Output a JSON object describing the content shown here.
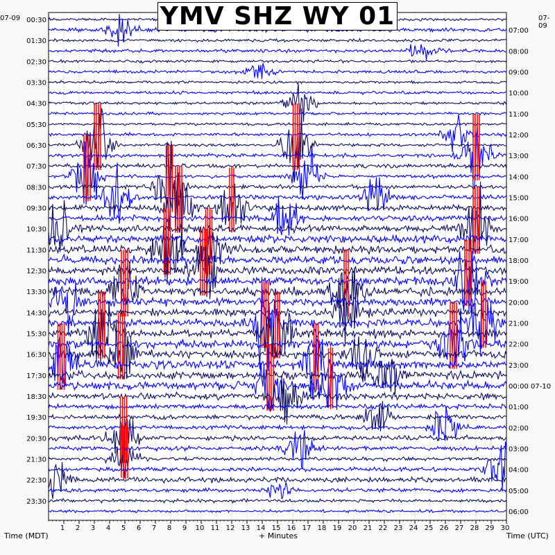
{
  "title": "YMV SHZ WY 01",
  "date_left": "07-09",
  "date_right_top": "07-09",
  "date_right_next": "07-10",
  "x_caption_left": "Time (MDT)",
  "x_caption_center": "+ Minutes",
  "x_caption_right": "Time (UTC)",
  "colors": {
    "background": "#f8f8f8",
    "plot_background": "#ffffff",
    "trace_dark": "#0a0a60",
    "trace_blue": "#0000ff",
    "clipped": "#ff0000",
    "grid": "#000000"
  },
  "chart_data": {
    "type": "line",
    "title": "YMV SHZ WY 01",
    "xlabel": "+ Minutes",
    "ylabel_left": "Time (MDT)",
    "ylabel_right": "Time (UTC)",
    "xlim": [
      0,
      30
    ],
    "x_ticks": [
      1,
      2,
      3,
      4,
      5,
      6,
      7,
      8,
      9,
      10,
      11,
      12,
      13,
      14,
      15,
      16,
      17,
      18,
      19,
      20,
      21,
      22,
      23,
      24,
      25,
      26,
      27,
      28,
      29,
      30
    ],
    "left_tick_labels": [
      "00:30",
      "01:30",
      "02:30",
      "03:30",
      "04:30",
      "05:30",
      "06:30",
      "07:30",
      "08:30",
      "09:30",
      "10:30",
      "11:30",
      "12:30",
      "13:30",
      "14:30",
      "15:30",
      "16:30",
      "17:30",
      "18:30",
      "19:30",
      "20:30",
      "21:30",
      "22:30",
      "23:30"
    ],
    "right_tick_labels": [
      "07:00",
      "08:00",
      "09:00",
      "10:00",
      "11:00",
      "12:00",
      "13:00",
      "14:00",
      "15:00",
      "16:00",
      "17:00",
      "18:00",
      "19:00",
      "20:00",
      "21:00",
      "22:00",
      "23:00",
      "00:00",
      "01:00",
      "02:00",
      "03:00",
      "04:00",
      "05:00",
      "06:00"
    ],
    "rows": 48,
    "row_minutes": 30,
    "series_colors": [
      "#0a0a60",
      "#0000ff"
    ],
    "activity_level": [
      0.1,
      0.35,
      0.18,
      0.22,
      0.15,
      0.18,
      0.12,
      0.16,
      0.14,
      0.15,
      0.12,
      0.2,
      0.15,
      0.3,
      0.35,
      0.25,
      0.3,
      0.4,
      0.55,
      0.6,
      0.75,
      0.85,
      0.9,
      0.95,
      0.9,
      1.0,
      0.95,
      0.9,
      0.85,
      0.9,
      1.0,
      0.95,
      0.9,
      1.0,
      1.0,
      0.95,
      0.7,
      0.45,
      0.4,
      0.35,
      0.45,
      0.4,
      0.3,
      0.35,
      0.5,
      0.3,
      0.25,
      0.15
    ],
    "events": [
      {
        "row": 1,
        "minute": 4.8,
        "amp": 1.0,
        "clipped": false
      },
      {
        "row": 3,
        "minute": 24.5,
        "amp": 0.7,
        "clipped": false
      },
      {
        "row": 5,
        "minute": 13.8,
        "amp": 0.6,
        "clipped": false
      },
      {
        "row": 8,
        "minute": 16.5,
        "amp": 1.2,
        "clipped": false
      },
      {
        "row": 11,
        "minute": 26.8,
        "amp": 1.0,
        "clipped": false
      },
      {
        "row": 12,
        "minute": 3.2,
        "amp": 2.5,
        "clipped": true
      },
      {
        "row": 12,
        "minute": 16.2,
        "amp": 2.4,
        "clipped": true
      },
      {
        "row": 13,
        "minute": 28.0,
        "amp": 2.0,
        "clipped": true
      },
      {
        "row": 15,
        "minute": 2.5,
        "amp": 2.0,
        "clipped": true
      },
      {
        "row": 15,
        "minute": 17.0,
        "amp": 2.0,
        "clipped": false
      },
      {
        "row": 16,
        "minute": 7.9,
        "amp": 2.6,
        "clipped": true
      },
      {
        "row": 17,
        "minute": 4.5,
        "amp": 1.8,
        "clipped": false
      },
      {
        "row": 17,
        "minute": 21.5,
        "amp": 1.6,
        "clipped": false
      },
      {
        "row": 18,
        "minute": 8.5,
        "amp": 2.5,
        "clipped": true
      },
      {
        "row": 18,
        "minute": 12.0,
        "amp": 1.8,
        "clipped": true
      },
      {
        "row": 19,
        "minute": 15.5,
        "amp": 1.5,
        "clipped": false
      },
      {
        "row": 20,
        "minute": 0.6,
        "amp": 1.6,
        "clipped": false
      },
      {
        "row": 20,
        "minute": 28.0,
        "amp": 2.5,
        "clipped": true
      },
      {
        "row": 22,
        "minute": 7.8,
        "amp": 2.5,
        "clipped": true
      },
      {
        "row": 22,
        "minute": 10.5,
        "amp": 1.8,
        "clipped": true
      },
      {
        "row": 24,
        "minute": 10.2,
        "amp": 2.2,
        "clipped": true
      },
      {
        "row": 25,
        "minute": 27.5,
        "amp": 2.5,
        "clipped": true
      },
      {
        "row": 26,
        "minute": 5.0,
        "amp": 2.2,
        "clipped": true
      },
      {
        "row": 26,
        "minute": 19.5,
        "amp": 2.0,
        "clipped": true
      },
      {
        "row": 27,
        "minute": 1.2,
        "amp": 1.8,
        "clipped": false
      },
      {
        "row": 28,
        "minute": 19.5,
        "amp": 2.0,
        "clipped": false
      },
      {
        "row": 29,
        "minute": 14.2,
        "amp": 2.6,
        "clipped": true
      },
      {
        "row": 29,
        "minute": 28.5,
        "amp": 2.3,
        "clipped": true
      },
      {
        "row": 30,
        "minute": 3.5,
        "amp": 2.0,
        "clipped": true
      },
      {
        "row": 30,
        "minute": 15.0,
        "amp": 2.4,
        "clipped": true
      },
      {
        "row": 31,
        "minute": 26.5,
        "amp": 2.2,
        "clipped": true
      },
      {
        "row": 32,
        "minute": 4.8,
        "amp": 2.2,
        "clipped": true
      },
      {
        "row": 32,
        "minute": 20.5,
        "amp": 1.8,
        "clipped": false
      },
      {
        "row": 33,
        "minute": 0.8,
        "amp": 2.0,
        "clipped": true
      },
      {
        "row": 33,
        "minute": 17.5,
        "amp": 2.2,
        "clipped": true
      },
      {
        "row": 34,
        "minute": 22.0,
        "amp": 1.8,
        "clipped": false
      },
      {
        "row": 35,
        "minute": 14.5,
        "amp": 1.9,
        "clipped": true
      },
      {
        "row": 35,
        "minute": 18.5,
        "amp": 1.6,
        "clipped": true
      },
      {
        "row": 36,
        "minute": 15.5,
        "amp": 1.8,
        "clipped": false
      },
      {
        "row": 38,
        "minute": 21.5,
        "amp": 1.0,
        "clipped": false
      },
      {
        "row": 39,
        "minute": 26.0,
        "amp": 1.6,
        "clipped": false
      },
      {
        "row": 40,
        "minute": 4.9,
        "amp": 2.0,
        "clipped": true
      },
      {
        "row": 41,
        "minute": 16.5,
        "amp": 1.3,
        "clipped": false
      },
      {
        "row": 42,
        "minute": 5.0,
        "amp": 1.5,
        "clipped": true
      },
      {
        "row": 44,
        "minute": 0.4,
        "amp": 1.3,
        "clipped": false
      },
      {
        "row": 43,
        "minute": 29.5,
        "amp": 1.8,
        "clipped": false
      },
      {
        "row": 45,
        "minute": 15.2,
        "amp": 0.6,
        "clipped": false
      }
    ]
  }
}
